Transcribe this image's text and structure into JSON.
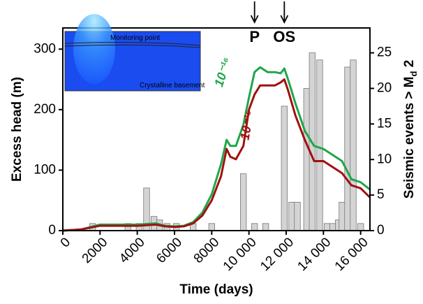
{
  "chart_data": {
    "type": "combo",
    "x_label": "Time (days)",
    "y_label": "Excess head (m)",
    "y2_label": {
      "text": "Seismic events > M",
      "sub": "d",
      "after": " 2"
    },
    "xlim": [
      0,
      16500
    ],
    "xticks": [
      0,
      2000,
      4000,
      6000,
      8000,
      {
        "value": 10000,
        "label": "10 000"
      },
      {
        "value": 12000,
        "label": "12 000"
      },
      {
        "value": 14000,
        "label": "14 000"
      },
      {
        "value": 16000,
        "label": "16 000"
      }
    ],
    "ylim": [
      0,
      335
    ],
    "yticks": [
      0,
      100,
      200,
      300
    ],
    "y2lim": [
      0,
      28.5
    ],
    "y2ticks": [
      0,
      5,
      10,
      15,
      20,
      25
    ],
    "series": [
      {
        "type": "bar",
        "axis": "y2",
        "color": "#d4d4d4",
        "x": [
          1600,
          3500,
          4100,
          4500,
          4900,
          5200,
          5600,
          6100,
          7000,
          8000,
          9700,
          10300,
          10900,
          11900,
          12300,
          12600,
          13100,
          13400,
          13800,
          14200,
          14500,
          14800,
          15000,
          15300,
          15600,
          16000
        ],
        "values": [
          1,
          1,
          1,
          6,
          2,
          1.5,
          1,
          1,
          1,
          1,
          8,
          1,
          1,
          17.5,
          4,
          4,
          20,
          25,
          24,
          1,
          1,
          1.5,
          4,
          23,
          24,
          1
        ]
      },
      {
        "type": "line",
        "name": "10⁻¹⁶",
        "color": "#1fa64a",
        "x": [
          0,
          1000,
          2000,
          3000,
          4000,
          5000,
          5500,
          6000,
          6500,
          7000,
          7500,
          8000,
          8500,
          8800,
          9000,
          9300,
          9700,
          10000,
          10300,
          10600,
          11000,
          11400,
          11700,
          11900,
          12100,
          12500,
          13000,
          13500,
          14000,
          14500,
          15000,
          15500,
          16000,
          16500
        ],
        "values": [
          0,
          2,
          10,
          10,
          10,
          12,
          8,
          7,
          8,
          14,
          30,
          60,
          110,
          150,
          140,
          140,
          175,
          220,
          262,
          270,
          262,
          262,
          260,
          268,
          250,
          210,
          165,
          140,
          135,
          125,
          115,
          85,
          80,
          68
        ]
      },
      {
        "type": "line",
        "name": "10⁻¹⁵",
        "color": "#a01010",
        "x": [
          0,
          1000,
          2000,
          3000,
          4000,
          5000,
          5500,
          6000,
          6500,
          7000,
          7500,
          8000,
          8500,
          8800,
          9000,
          9300,
          9700,
          10000,
          10300,
          10600,
          11000,
          11400,
          11700,
          11900,
          12100,
          12500,
          13000,
          13500,
          14000,
          14500,
          15000,
          15500,
          16000,
          16500
        ],
        "values": [
          0,
          2,
          8,
          8,
          8,
          10,
          7,
          6,
          7,
          12,
          25,
          50,
          90,
          135,
          122,
          118,
          140,
          200,
          225,
          240,
          240,
          240,
          245,
          250,
          232,
          190,
          150,
          115,
          115,
          105,
          95,
          75,
          70,
          55
        ]
      }
    ],
    "markers": [
      {
        "x": 10300,
        "label": "P"
      },
      {
        "x": 11900,
        "label": "OS"
      }
    ],
    "inset": {
      "top_label": "Monitoring point",
      "bottom_label": "Crystalline basement"
    }
  }
}
